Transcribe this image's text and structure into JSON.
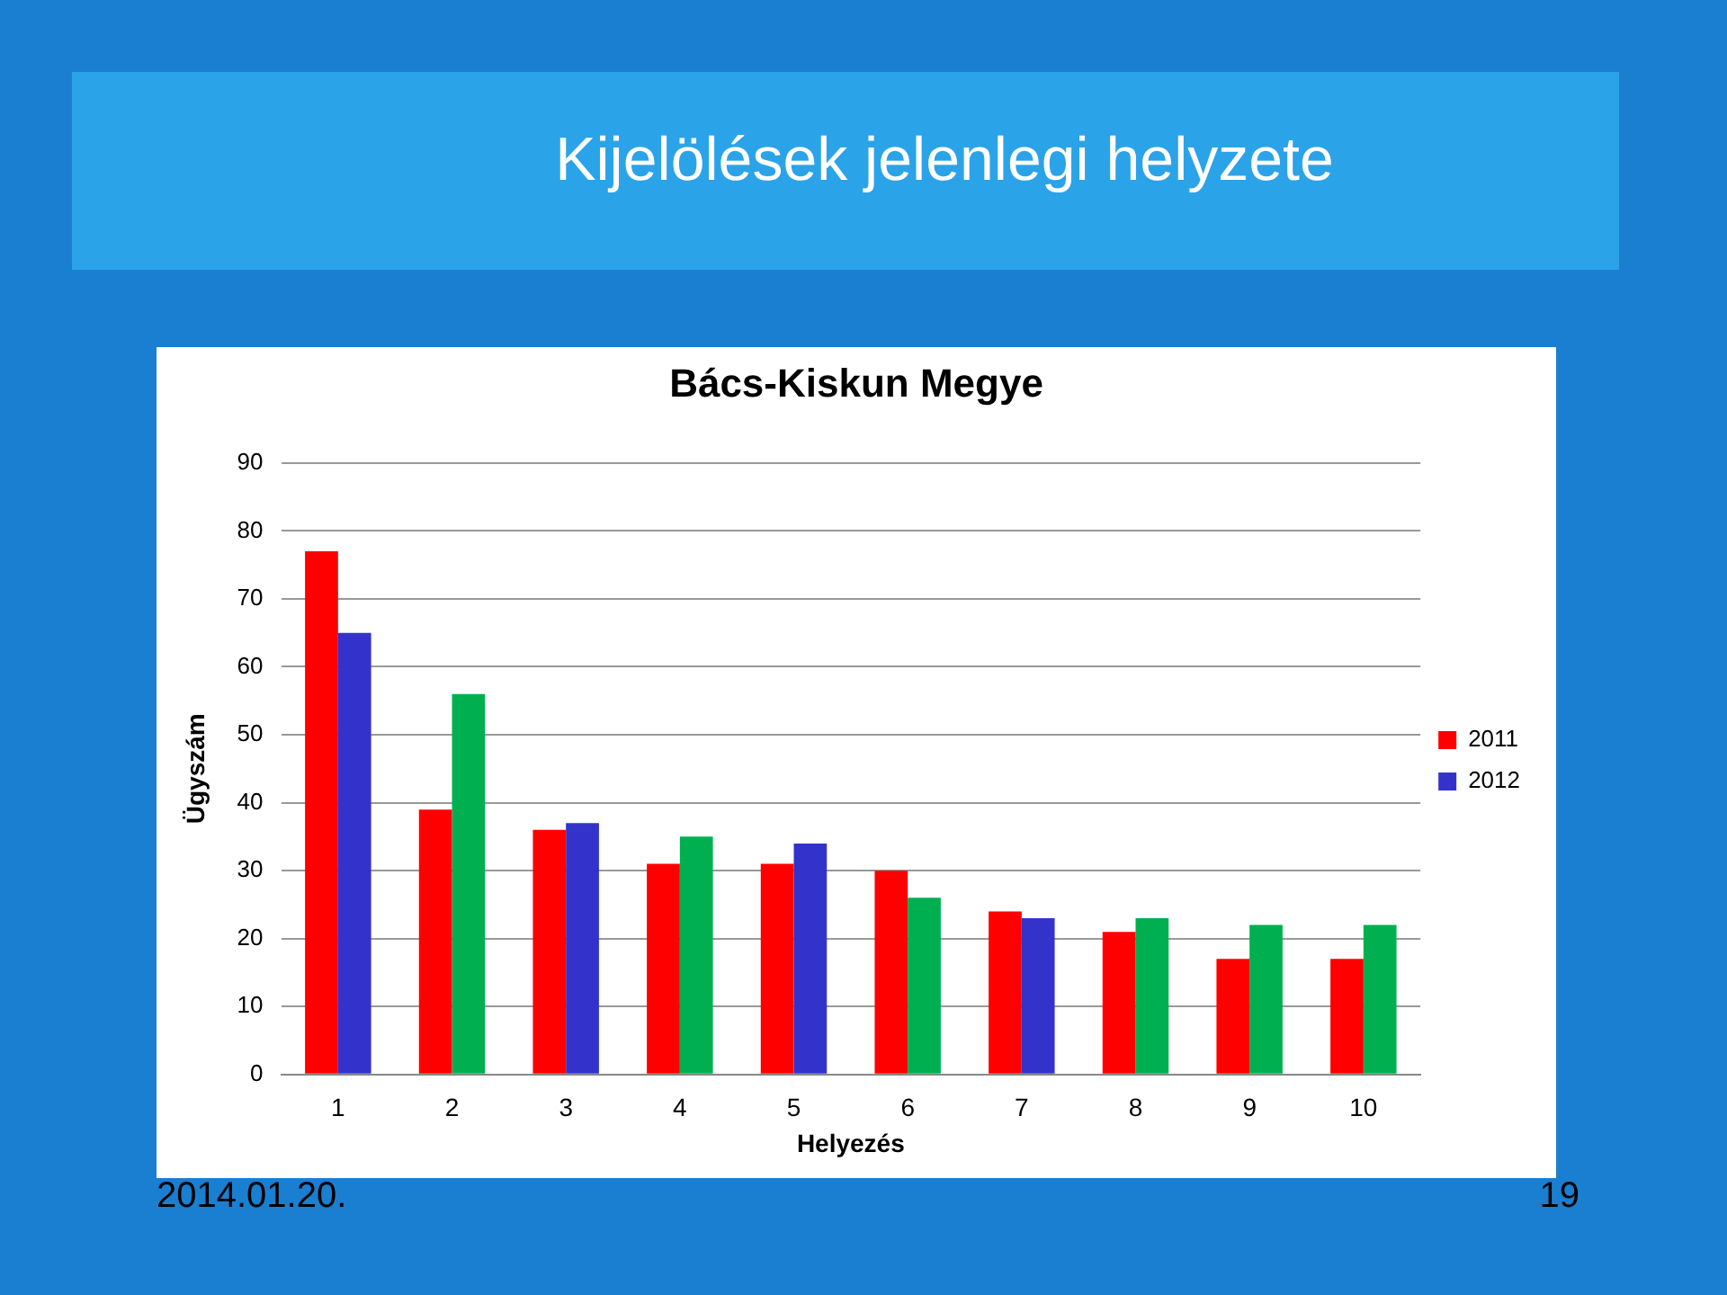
{
  "chart_data": {
    "type": "bar",
    "title": "Kijelölések jelenlegi helyzete",
    "subtitle": "Bács-Kiskun Megye",
    "xlabel": "Helyezés",
    "ylabel": "Ügyszám",
    "categories": [
      "1",
      "2",
      "3",
      "4",
      "5",
      "6",
      "7",
      "8",
      "9",
      "10"
    ],
    "series": [
      {
        "name": "2011",
        "color": "#ff0000",
        "values": [
          77,
          39,
          36,
          31,
          31,
          30,
          24,
          21,
          17,
          17
        ]
      },
      {
        "name": "2012",
        "color": "#3333cc",
        "colors": [
          "#3333cc",
          "#00b050",
          "#3333cc",
          "#00b050",
          "#3333cc",
          "#00b050",
          "#3333cc",
          "#00b050",
          "#00b050",
          "#00b050"
        ],
        "values": [
          65,
          56,
          37,
          35,
          34,
          26,
          23,
          23,
          22,
          22
        ]
      }
    ],
    "ylim": [
      0,
      90
    ],
    "yticks": [
      0,
      10,
      20,
      30,
      40,
      50,
      60,
      70,
      80,
      90
    ],
    "grid": "y",
    "legend": "right",
    "annotations": [
      "2014.01.20.",
      "19"
    ]
  }
}
